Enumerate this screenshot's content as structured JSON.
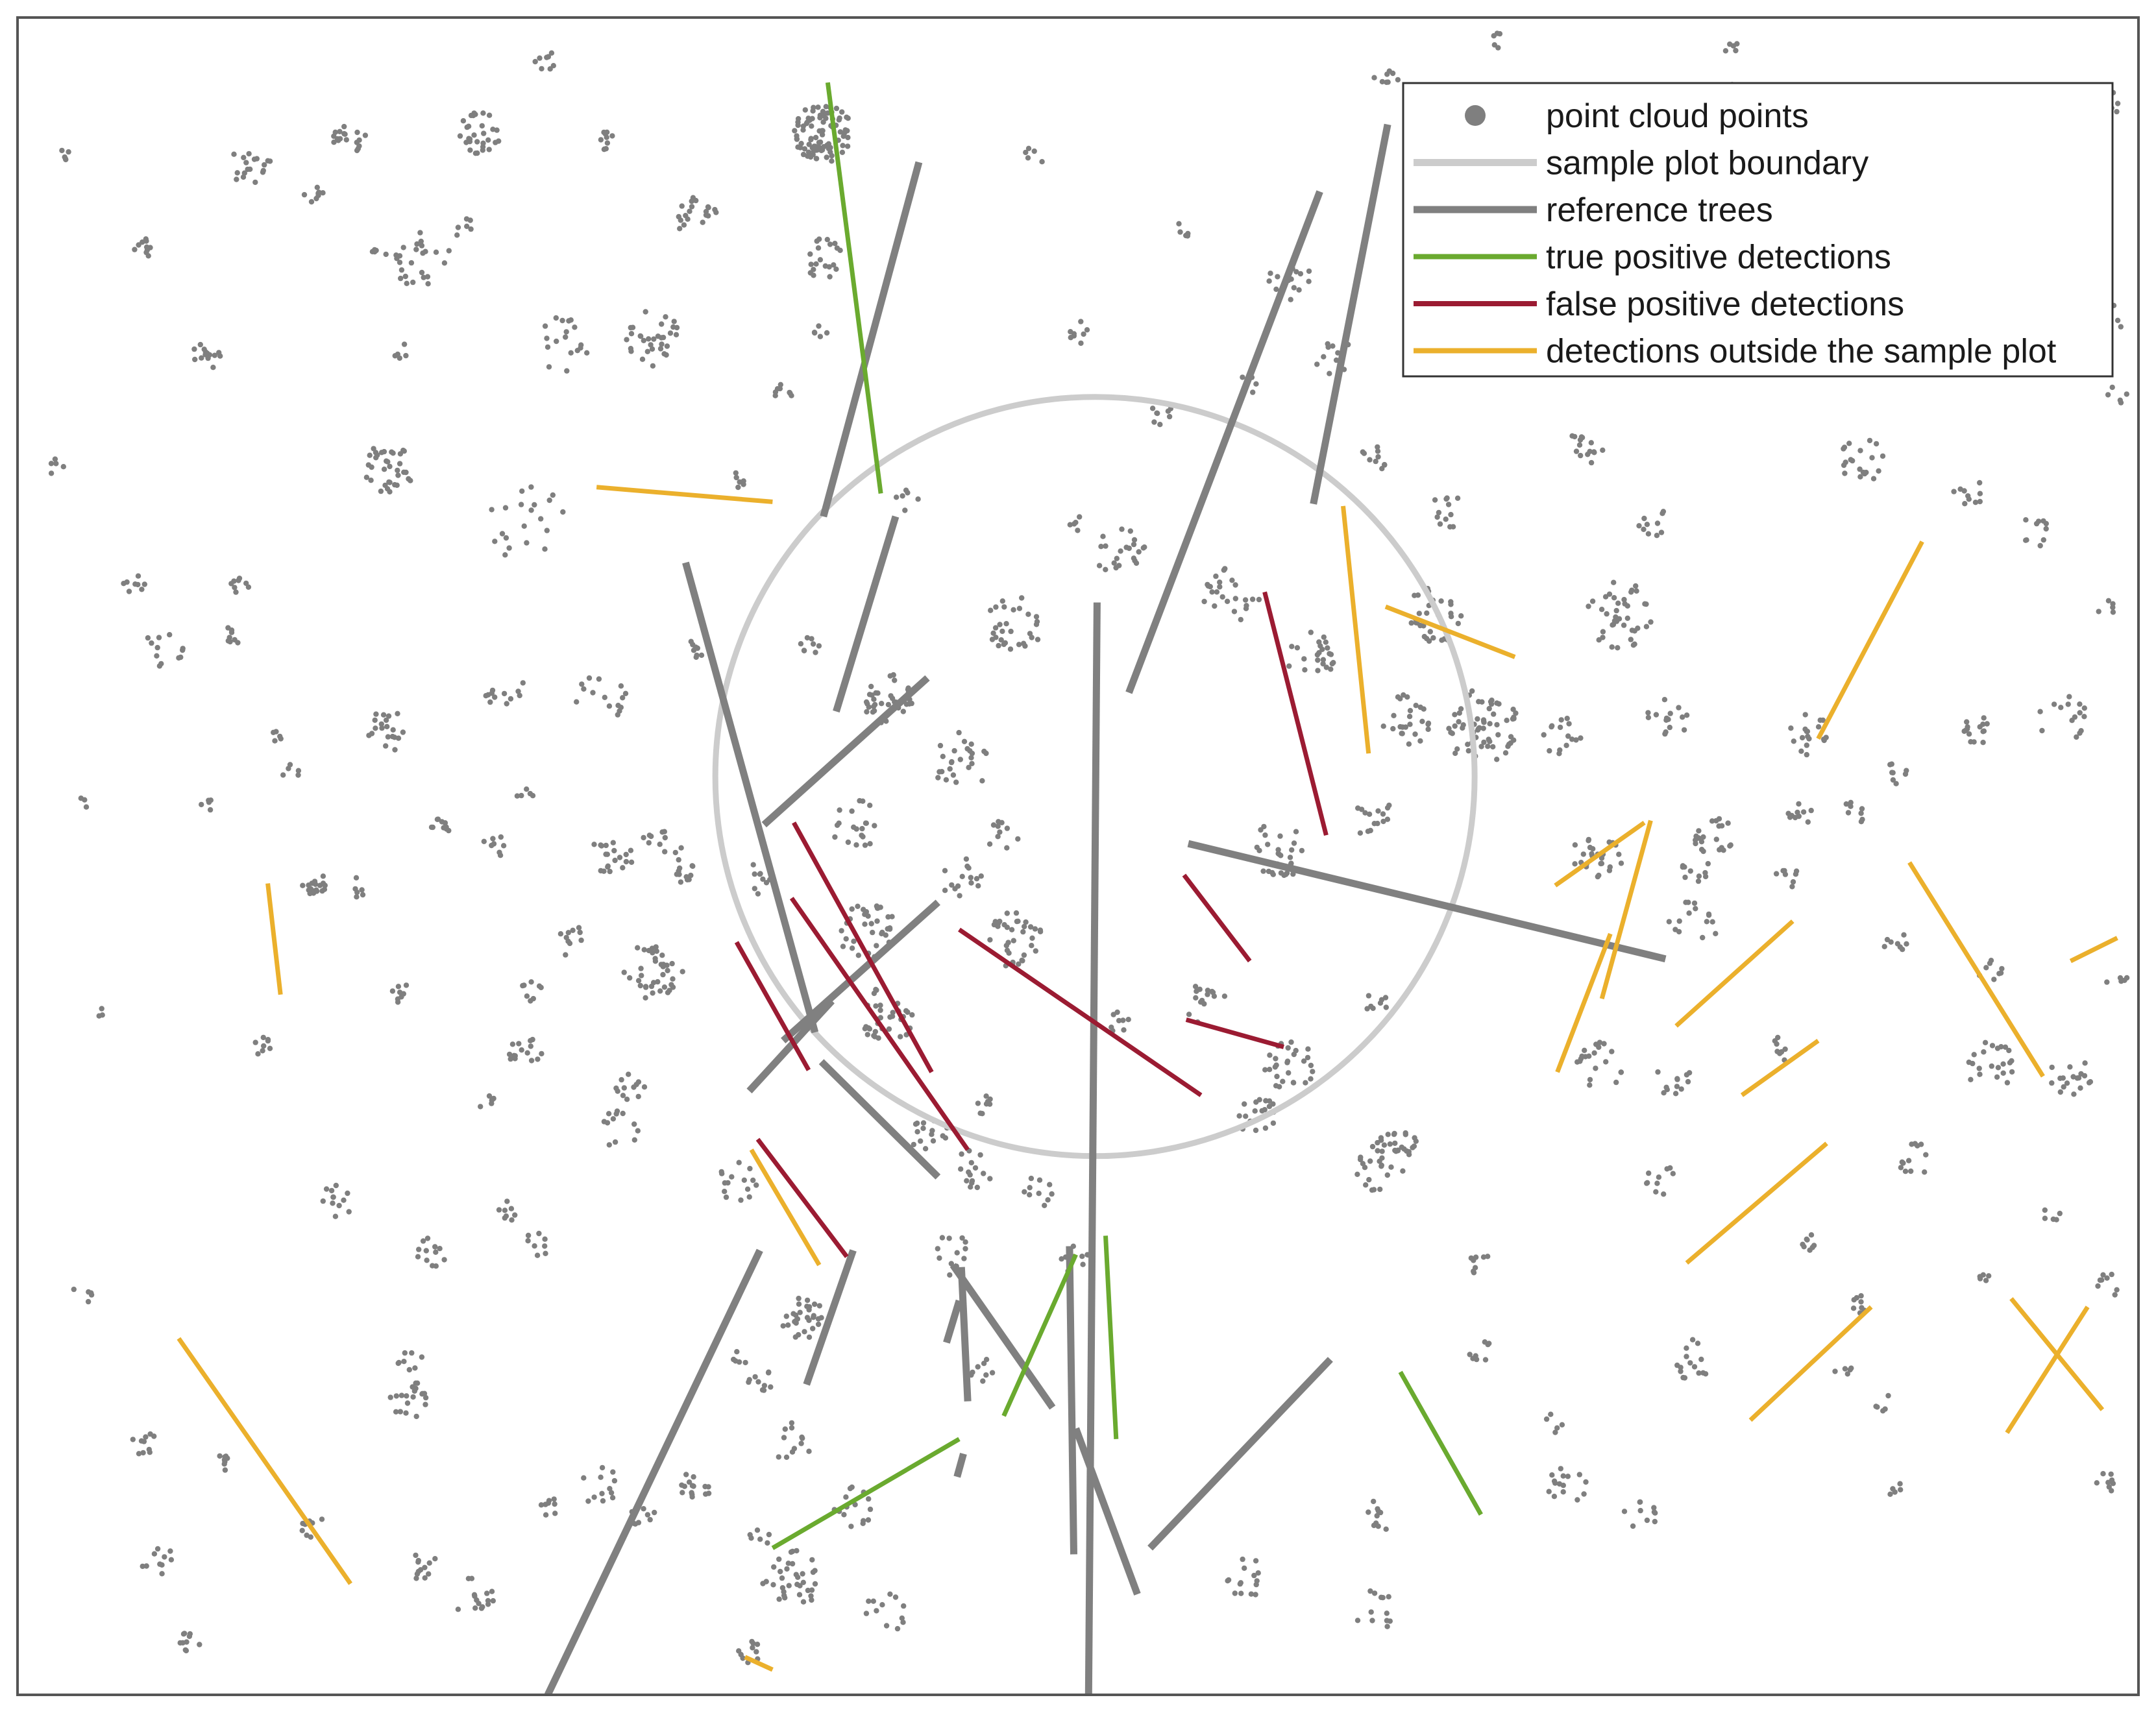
{
  "chart_data": {
    "type": "scatter",
    "title": "",
    "xlabel": "",
    "ylabel": "",
    "xlim": [
      0,
      1000
    ],
    "ylim": [
      0,
      800
    ],
    "grid": false,
    "axes_ticks": false,
    "legend_placement": "top-right",
    "colors": {
      "points": "#7f7f7f",
      "boundary": "#cccccc",
      "reference": "#808080",
      "true_positive": "#6aaa2f",
      "false_positive": "#9b1b32",
      "outside": "#ebb02c"
    },
    "legend": [
      {
        "key": "points",
        "label": "point cloud points",
        "marker": "dot"
      },
      {
        "key": "boundary",
        "label": "sample plot boundary",
        "marker": "line"
      },
      {
        "key": "reference",
        "label": "reference trees",
        "marker": "line"
      },
      {
        "key": "true_positive",
        "label": "true positive detections",
        "marker": "line"
      },
      {
        "key": "false_positive",
        "label": "false positive detections",
        "marker": "line"
      },
      {
        "key": "outside",
        "label": "detections outside the sample plot",
        "marker": "line"
      }
    ],
    "sample_plot": {
      "center": [
        508,
        438
      ],
      "radius": 179
    },
    "point_clusters": [
      [
        380,
        745,
        14,
        90
      ],
      [
        278,
        741,
        5,
        10
      ],
      [
        218,
        745,
        10,
        30
      ],
      [
        190,
        685,
        14,
        25
      ],
      [
        150,
        745,
        5,
        10
      ],
      [
        110,
        730,
        10,
        18
      ],
      [
        140,
        715,
        5,
        8
      ],
      [
        60,
        690,
        5,
        10
      ],
      [
        175,
        585,
        12,
        35
      ],
      [
        90,
        640,
        8,
        15
      ],
      [
        20,
        585,
        5,
        5
      ],
      [
        380,
        685,
        10,
        20
      ],
      [
        100,
        505,
        5,
        8
      ],
      [
        105,
        530,
        5,
        8
      ],
      [
        55,
        530,
        5,
        8
      ],
      [
        70,
        500,
        10,
        12
      ],
      [
        30,
        425,
        3,
        3
      ],
      [
        40,
        325,
        3,
        3
      ],
      [
        115,
        310,
        5,
        8
      ],
      [
        200,
        415,
        5,
        10
      ],
      [
        140,
        387,
        6,
        18
      ],
      [
        320,
        705,
        10,
        20
      ],
      [
        300,
        647,
        14,
        32
      ],
      [
        257,
        645,
        14,
        18
      ],
      [
        240,
        560,
        20,
        20
      ],
      [
        410,
        475,
        12,
        35
      ],
      [
        470,
        510,
        14,
        30
      ],
      [
        520,
        545,
        12,
        22
      ],
      [
        572,
        525,
        14,
        25
      ],
      [
        610,
        495,
        12,
        24
      ],
      [
        690,
        462,
        18,
        60
      ],
      [
        655,
        465,
        12,
        25
      ],
      [
        640,
        418,
        10,
        15
      ],
      [
        595,
        403,
        14,
        30
      ],
      [
        668,
        515,
        14,
        30
      ],
      [
        675,
        563,
        10,
        12
      ],
      [
        640,
        588,
        8,
        10
      ],
      [
        745,
        398,
        12,
        20
      ],
      [
        755,
        515,
        16,
        40
      ],
      [
        778,
        465,
        10,
        15
      ],
      [
        728,
        458,
        10,
        15
      ],
      [
        845,
        458,
        10,
        18
      ],
      [
        840,
        420,
        6,
        10
      ],
      [
        790,
        368,
        12,
        15
      ],
      [
        740,
        400,
        8,
        8
      ],
      [
        800,
        410,
        10,
        22
      ],
      [
        865,
        420,
        6,
        8
      ],
      [
        885,
        440,
        6,
        8
      ],
      [
        923,
        460,
        8,
        15
      ],
      [
        965,
        465,
        12,
        15
      ],
      [
        950,
        555,
        8,
        10
      ],
      [
        870,
        590,
        12,
        20
      ],
      [
        845,
        645,
        14,
        20
      ],
      [
        725,
        640,
        10,
        15
      ],
      [
        700,
        705,
        10,
        15
      ],
      [
        680,
        680,
        10,
        10
      ],
      [
        600,
        675,
        10,
        15
      ],
      [
        620,
        640,
        10,
        10
      ],
      [
        670,
        740,
        10,
        12
      ],
      [
        750,
        748,
        10,
        15
      ],
      [
        790,
        742,
        10,
        12
      ],
      [
        810,
        760,
        10,
        12
      ],
      [
        960,
        698,
        12,
        25
      ],
      [
        980,
        655,
        12,
        15
      ],
      [
        920,
        575,
        8,
        10
      ],
      [
        960,
        710,
        8,
        10
      ],
      [
        850,
        720,
        12,
        18
      ],
      [
        945,
        735,
        8,
        10
      ],
      [
        900,
        760,
        8,
        10
      ],
      [
        740,
        595,
        10,
        15
      ],
      [
        770,
        560,
        8,
        10
      ],
      [
        790,
        395,
        8,
        10
      ],
      [
        835,
        390,
        6,
        8
      ],
      [
        930,
        345,
        6,
        8
      ],
      [
        885,
        360,
        6,
        8
      ],
      [
        745,
        300,
        12,
        20
      ],
      [
        780,
        295,
        10,
        12
      ],
      [
        832,
        308,
        6,
        8
      ],
      [
        930,
        300,
        12,
        22
      ],
      [
        968,
        295,
        10,
        18
      ],
      [
        895,
        255,
        8,
        12
      ],
      [
        790,
        160,
        10,
        15
      ],
      [
        690,
        205,
        6,
        8
      ],
      [
        650,
        260,
        12,
        30
      ],
      [
        690,
        165,
        6,
        8
      ],
      [
        985,
        195,
        6,
        8
      ],
      [
        775,
        245,
        8,
        10
      ],
      [
        843,
        215,
        6,
        8
      ],
      [
        870,
        185,
        6,
        8
      ],
      [
        930,
        200,
        5,
        5
      ],
      [
        960,
        230,
        5,
        5
      ],
      [
        725,
        130,
        5,
        5
      ],
      [
        730,
        100,
        10,
        15
      ],
      [
        765,
        85,
        8,
        10
      ],
      [
        860,
        155,
        5,
        5
      ],
      [
        985,
        100,
        6,
        8
      ],
      [
        640,
        85,
        8,
        10
      ],
      [
        580,
        55,
        10,
        15
      ],
      [
        640,
        40,
        10,
        12
      ],
      [
        585,
        275,
        10,
        18
      ],
      [
        560,
        330,
        10,
        15
      ],
      [
        640,
        250,
        10,
        15
      ],
      [
        640,
        330,
        6,
        8
      ],
      [
        600,
        300,
        12,
        28
      ],
      [
        520,
        320,
        6,
        8
      ],
      [
        450,
        250,
        10,
        15
      ],
      [
        500,
        207,
        8,
        10
      ],
      [
        455,
        155,
        6,
        8
      ],
      [
        370,
        180,
        10,
        30
      ],
      [
        395,
        90,
        10,
        15
      ],
      [
        365,
        55,
        14,
        35
      ],
      [
        350,
        150,
        6,
        10
      ],
      [
        365,
        120,
        10,
        12
      ],
      [
        320,
        100,
        8,
        15
      ],
      [
        345,
        20,
        6,
        10
      ],
      [
        410,
        40,
        10,
        12
      ],
      [
        440,
        210,
        10,
        12
      ],
      [
        430,
        265,
        10,
        15
      ],
      [
        480,
        240,
        8,
        10
      ],
      [
        470,
        360,
        14,
        35
      ],
      [
        455,
        280,
        6,
        8
      ],
      [
        445,
        445,
        14,
        25
      ],
      [
        445,
        390,
        10,
        15
      ],
      [
        410,
        325,
        14,
        35
      ],
      [
        400,
        365,
        14,
        35
      ],
      [
        395,
        415,
        12,
        20
      ],
      [
        350,
        390,
        8,
        10
      ],
      [
        300,
        345,
        14,
        38
      ],
      [
        310,
        395,
        10,
        15
      ],
      [
        280,
        400,
        10,
        20
      ],
      [
        260,
        360,
        8,
        10
      ],
      [
        240,
        305,
        10,
        15
      ],
      [
        225,
        405,
        6,
        8
      ],
      [
        243,
        335,
        6,
        8
      ],
      [
        180,
        335,
        5,
        8
      ],
      [
        160,
        385,
        5,
        6
      ],
      [
        185,
        140,
        10,
        20
      ],
      [
        185,
        160,
        6,
        8
      ],
      [
        150,
        235,
        8,
        12
      ],
      [
        195,
        210,
        8,
        12
      ],
      [
        230,
        230,
        6,
        8
      ],
      [
        285,
        270,
        10,
        12
      ],
      [
        340,
        245,
        10,
        15
      ],
      [
        290,
        290,
        8,
        12
      ],
      [
        245,
        215,
        6,
        8
      ],
      [
        340,
        160,
        5,
        5
      ],
      [
        275,
        100,
        10,
        12
      ],
      [
        190,
        62,
        8,
        12
      ],
      [
        215,
        47,
        10,
        15
      ],
      [
        250,
        90,
        5,
        8
      ],
      [
        295,
        85,
        6,
        10
      ],
      [
        350,
        75,
        5,
        6
      ],
      [
        140,
        80,
        6,
        8
      ],
      [
        95,
        110,
        5,
        8
      ],
      [
        60,
        120,
        6,
        10
      ],
      [
        65,
        65,
        8,
        10
      ],
      [
        80,
        25,
        6,
        10
      ],
      [
        175,
        460,
        10,
        20
      ],
      [
        230,
        480,
        10,
        12
      ],
      [
        275,
        475,
        12,
        15
      ],
      [
        300,
        410,
        6,
        8
      ],
      [
        465,
        410,
        8,
        10
      ],
      [
        320,
        500,
        6,
        8
      ],
      [
        375,
        500,
        6,
        8
      ],
      [
        540,
        610,
        6,
        8
      ],
      [
        500,
        650,
        6,
        8
      ],
      [
        380,
        650,
        5,
        5
      ],
      [
        250,
        780,
        6,
        8
      ],
      [
        20,
        735,
        5,
        5
      ],
      [
        30,
        190,
        5,
        5
      ],
      [
        160,
        740,
        6,
        8
      ],
      [
        420,
        570,
        6,
        6
      ],
      [
        340,
        580,
        5,
        6
      ],
      [
        360,
        620,
        6,
        8
      ],
      [
        880,
        140,
        5,
        5
      ],
      [
        885,
        100,
        5,
        5
      ],
      [
        990,
        340,
        5,
        5
      ],
      [
        990,
        620,
        5,
        5
      ],
      [
        985,
        520,
        5,
        5
      ],
      [
        990,
        760,
        5,
        5
      ],
      [
        810,
        785,
        5,
        5
      ],
      [
        645,
        770,
        6,
        8
      ],
      [
        700,
        790,
        5,
        5
      ],
      [
        500,
        560,
        5,
        5
      ],
      [
        170,
        690,
        5,
        5
      ],
      [
        210,
        700,
        5,
        6
      ],
      [
        180,
        640,
        5,
        5
      ],
      [
        480,
        735,
        5,
        5
      ],
      [
        550,
        700,
        5,
        5
      ],
      [
        580,
        625,
        5,
        5
      ],
      [
        220,
        285,
        5,
        5
      ],
      [
        120,
        455,
        5,
        5
      ],
      [
        90,
        425,
        5,
        5
      ],
      [
        130,
        440,
        5,
        5
      ],
      [
        240,
        430,
        5,
        5
      ]
    ],
    "reference_trees": [
      [
        380,
        562,
        425,
        731
      ],
      [
        524,
        478,
        614,
        717
      ],
      [
        429,
        485,
        352,
        415
      ],
      [
        384,
        331,
        345,
        288
      ],
      [
        434,
        378,
        361,
        312
      ],
      [
        315,
        540,
        376,
        316
      ],
      [
        379,
        302,
        434,
        247
      ],
      [
        350,
        212,
        250,
        0
      ],
      [
        394,
        212,
        372,
        148
      ],
      [
        448,
        140,
        445,
        204
      ],
      [
        441,
        205,
        488,
        137
      ],
      [
        499,
        127,
        528,
        48
      ],
      [
        552,
        406,
        777,
        351
      ],
      [
        386,
        469,
        414,
        562
      ],
      [
        509,
        521,
        505,
        0
      ],
      [
        496,
        214,
        498,
        67
      ],
      [
        619,
        160,
        534,
        70
      ],
      [
        611,
        568,
        646,
        749
      ],
      [
        438,
        168,
        444,
        188
      ],
      [
        446,
        115,
        443,
        104
      ]
    ],
    "true_positive": [
      [
        382,
        769,
        407,
        573
      ],
      [
        465,
        133,
        499,
        210
      ],
      [
        652,
        154,
        690,
        86
      ],
      [
        356,
        70,
        444,
        122
      ],
      [
        513,
        219,
        518,
        122
      ]
    ],
    "false_positive": [
      [
        366,
        416,
        431,
        297
      ],
      [
        365,
        380,
        448,
        260
      ],
      [
        339,
        359,
        373,
        298
      ],
      [
        444,
        365,
        558,
        286
      ],
      [
        551,
        322,
        597,
        309
      ],
      [
        550,
        391,
        581,
        350
      ],
      [
        588,
        526,
        617,
        410
      ],
      [
        349,
        265,
        391,
        209
      ]
    ],
    "outside": [
      [
        273,
        576,
        356,
        569
      ],
      [
        118,
        387,
        124,
        334
      ],
      [
        76,
        170,
        157,
        53
      ],
      [
        346,
        260,
        378,
        205
      ],
      [
        645,
        519,
        706,
        495
      ],
      [
        625,
        567,
        637,
        449
      ],
      [
        725,
        386,
        767,
        416
      ],
      [
        747,
        332,
        770,
        417
      ],
      [
        726,
        297,
        751,
        363
      ],
      [
        782,
        319,
        837,
        369
      ],
      [
        849,
        456,
        898,
        550
      ],
      [
        892,
        397,
        955,
        295
      ],
      [
        968,
        350,
        990,
        361
      ],
      [
        787,
        206,
        853,
        263
      ],
      [
        813,
        286,
        849,
        312
      ],
      [
        817,
        131,
        874,
        185
      ],
      [
        938,
        125,
        976,
        185
      ],
      [
        940,
        189,
        983,
        136
      ],
      [
        343,
        18,
        356,
        12
      ]
    ]
  }
}
